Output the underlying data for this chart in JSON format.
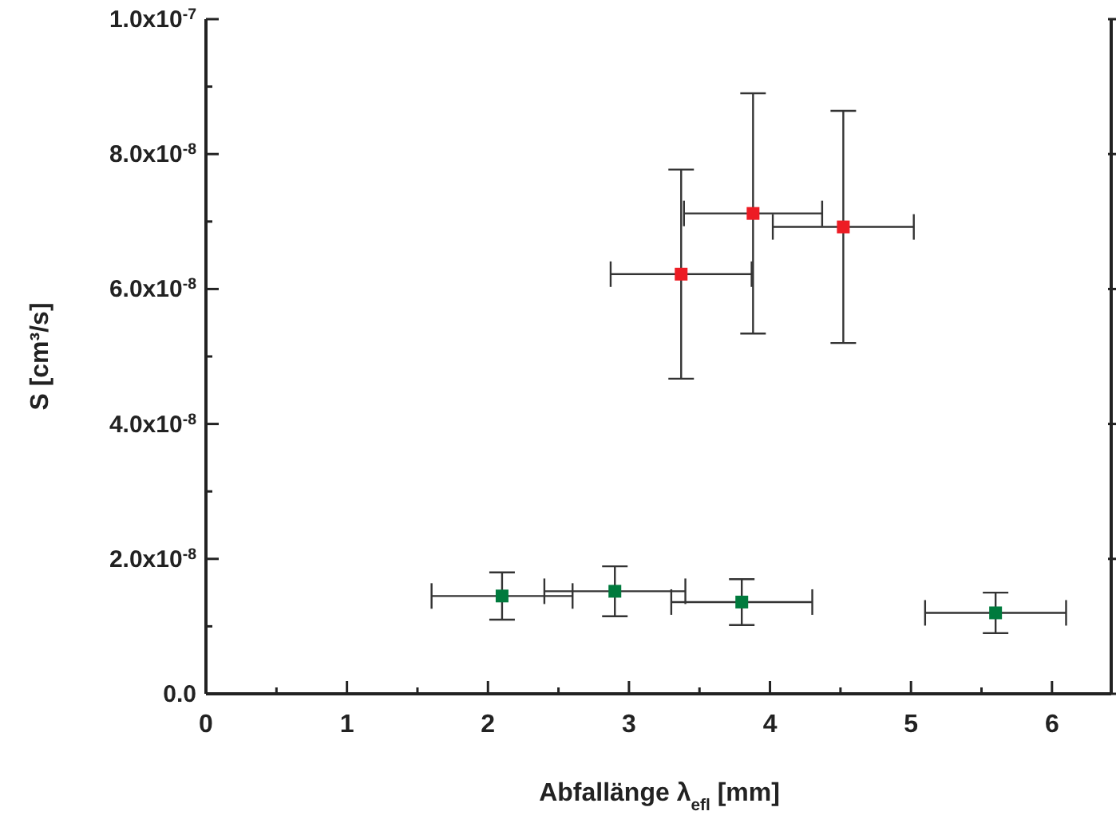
{
  "chart_data": {
    "type": "scatter",
    "xlabel": "Abfallänge λ$_{efl}$ [mm]",
    "ylabel": "S [cm³/s]",
    "xlim": [
      0,
      6.42
    ],
    "ylim": [
      0,
      1e-07
    ],
    "xticks": [
      0,
      {
        "value": 0.5,
        "label": null
      },
      1,
      {
        "value": 1.5,
        "label": null
      },
      2,
      {
        "value": 2.5,
        "label": null
      },
      3,
      {
        "value": 3.5,
        "label": null
      },
      4,
      {
        "value": 4.5,
        "label": null
      },
      5,
      {
        "value": 5.5,
        "label": null
      },
      6
    ],
    "yticks": [
      {
        "value": 0,
        "label": "0.0"
      },
      {
        "value": 1e-08,
        "label": null
      },
      {
        "value": 2e-08,
        "label": "2.0x10$^{-8}$"
      },
      {
        "value": 3e-08,
        "label": null
      },
      {
        "value": 4e-08,
        "label": "4.0x10$^{-8}$"
      },
      {
        "value": 5e-08,
        "label": null
      },
      {
        "value": 6e-08,
        "label": "6.0x10$^{-8}$"
      },
      {
        "value": 7e-08,
        "label": null
      },
      {
        "value": 8e-08,
        "label": "8.0x10$^{-8}$"
      },
      {
        "value": 9e-08,
        "label": null
      },
      {
        "value": 1e-07,
        "label": "1.0x10$^{-7}$"
      }
    ],
    "marker": "square",
    "grid": false,
    "legend": false,
    "series": [
      {
        "color": "#ed1c24",
        "x": [
          3.37,
          3.88,
          4.52
        ],
        "values": [
          6.22e-08,
          7.12e-08,
          6.92e-08
        ],
        "errors": [
          1.55e-08,
          1.78e-08,
          1.72e-08
        ],
        "xerrors": [
          0.5,
          0.49,
          0.5
        ]
      },
      {
        "color": "#007a3d",
        "x": [
          2.1,
          2.9,
          3.8,
          5.6
        ],
        "values": [
          1.45e-08,
          1.52e-08,
          1.36e-08,
          1.2e-08
        ],
        "errors": [
          3.5e-09,
          3.7e-09,
          3.4e-09,
          3e-09
        ],
        "xerrors": [
          0.5,
          0.5,
          0.5,
          0.5
        ]
      }
    ]
  }
}
